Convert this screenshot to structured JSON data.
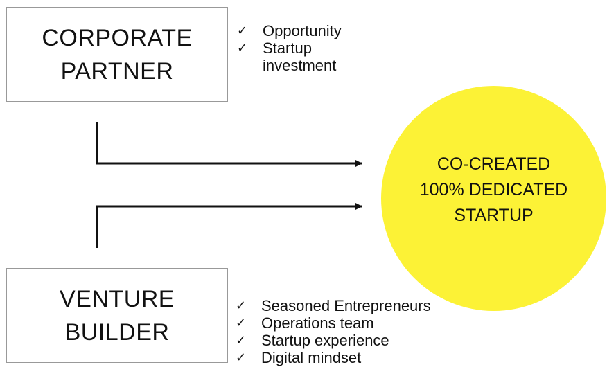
{
  "corporate_partner": {
    "title_lines": [
      "CORPORATE",
      "PARTNER"
    ],
    "benefits": [
      {
        "check": "✓",
        "lines": [
          "Opportunity"
        ]
      },
      {
        "check": "✓",
        "lines": [
          "Startup",
          "investment"
        ]
      }
    ]
  },
  "venture_builder": {
    "title_lines": [
      "VENTURE",
      "BUILDER"
    ],
    "benefits": [
      {
        "check": "✓",
        "lines": [
          "Seasoned Entrepreneurs"
        ]
      },
      {
        "check": "✓",
        "lines": [
          "Operations team"
        ]
      },
      {
        "check": "✓",
        "lines": [
          "Startup experience"
        ]
      },
      {
        "check": "✓",
        "lines": [
          "Digital mindset"
        ]
      }
    ]
  },
  "startup": {
    "title_lines": [
      "CO-CREATED",
      "100% DEDICATED",
      "STARTUP"
    ],
    "fill_color": "#fcf236"
  }
}
